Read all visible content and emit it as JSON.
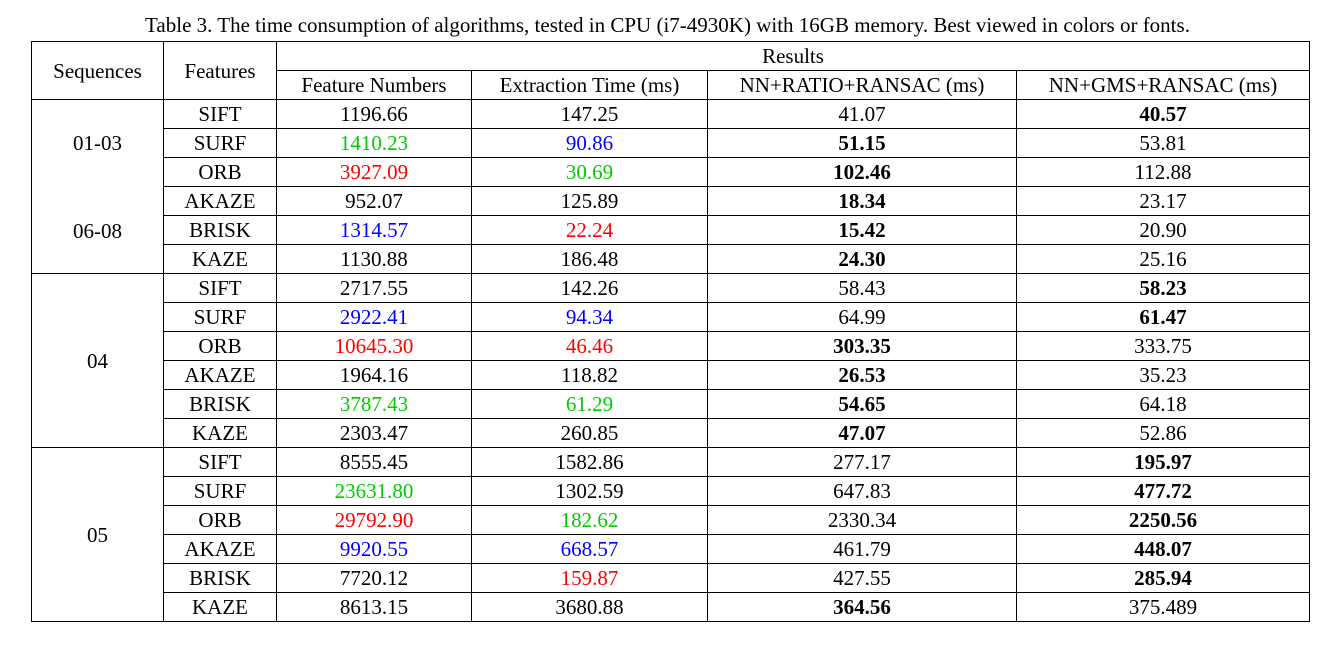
{
  "caption": "Table 3. The time consumption of algorithms, tested in CPU (i7-4930K) with 16GB memory. Best viewed in colors or fonts.",
  "header": {
    "sequences": "Sequences",
    "features": "Features",
    "results": "Results",
    "cols": [
      "Feature Numbers",
      "Extraction Time (ms)",
      "NN+RATIO+RANSAC (ms)",
      "NN+GMS+RANSAC (ms)"
    ]
  },
  "groups": [
    {
      "seq_lines": [
        "01-03",
        "06-08"
      ],
      "rows": [
        {
          "feature": "SIFT",
          "cells": [
            {
              "v": "1196.66",
              "c": ""
            },
            {
              "v": "147.25",
              "c": ""
            },
            {
              "v": "41.07",
              "c": ""
            },
            {
              "v": "40.57",
              "c": "bold"
            }
          ]
        },
        {
          "feature": "SURF",
          "cells": [
            {
              "v": "1410.23",
              "c": "green"
            },
            {
              "v": "90.86",
              "c": "blue"
            },
            {
              "v": "51.15",
              "c": "bold"
            },
            {
              "v": "53.81",
              "c": ""
            }
          ]
        },
        {
          "feature": "ORB",
          "cells": [
            {
              "v": "3927.09",
              "c": "red"
            },
            {
              "v": "30.69",
              "c": "green"
            },
            {
              "v": "102.46",
              "c": "bold"
            },
            {
              "v": "112.88",
              "c": ""
            }
          ]
        },
        {
          "feature": "AKAZE",
          "cells": [
            {
              "v": "952.07",
              "c": ""
            },
            {
              "v": "125.89",
              "c": ""
            },
            {
              "v": "18.34",
              "c": "bold"
            },
            {
              "v": "23.17",
              "c": ""
            }
          ]
        },
        {
          "feature": "BRISK",
          "cells": [
            {
              "v": "1314.57",
              "c": "blue"
            },
            {
              "v": "22.24",
              "c": "red"
            },
            {
              "v": "15.42",
              "c": "bold"
            },
            {
              "v": "20.90",
              "c": ""
            }
          ]
        },
        {
          "feature": "KAZE",
          "cells": [
            {
              "v": "1130.88",
              "c": ""
            },
            {
              "v": "186.48",
              "c": ""
            },
            {
              "v": "24.30",
              "c": "bold"
            },
            {
              "v": "25.16",
              "c": ""
            }
          ]
        }
      ]
    },
    {
      "seq_lines": [
        "04"
      ],
      "rows": [
        {
          "feature": "SIFT",
          "cells": [
            {
              "v": "2717.55",
              "c": ""
            },
            {
              "v": "142.26",
              "c": ""
            },
            {
              "v": "58.43",
              "c": ""
            },
            {
              "v": "58.23",
              "c": "bold"
            }
          ]
        },
        {
          "feature": "SURF",
          "cells": [
            {
              "v": "2922.41",
              "c": "blue"
            },
            {
              "v": "94.34",
              "c": "blue"
            },
            {
              "v": "64.99",
              "c": ""
            },
            {
              "v": "61.47",
              "c": "bold"
            }
          ]
        },
        {
          "feature": "ORB",
          "cells": [
            {
              "v": "10645.30",
              "c": "red"
            },
            {
              "v": "46.46",
              "c": "red"
            },
            {
              "v": "303.35",
              "c": "bold"
            },
            {
              "v": "333.75",
              "c": ""
            }
          ]
        },
        {
          "feature": "AKAZE",
          "cells": [
            {
              "v": "1964.16",
              "c": ""
            },
            {
              "v": "118.82",
              "c": ""
            },
            {
              "v": "26.53",
              "c": "bold"
            },
            {
              "v": "35.23",
              "c": ""
            }
          ]
        },
        {
          "feature": "BRISK",
          "cells": [
            {
              "v": "3787.43",
              "c": "green"
            },
            {
              "v": "61.29",
              "c": "green"
            },
            {
              "v": "54.65",
              "c": "bold"
            },
            {
              "v": "64.18",
              "c": ""
            }
          ]
        },
        {
          "feature": "KAZE",
          "cells": [
            {
              "v": "2303.47",
              "c": ""
            },
            {
              "v": "260.85",
              "c": ""
            },
            {
              "v": "47.07",
              "c": "bold"
            },
            {
              "v": "52.86",
              "c": ""
            }
          ]
        }
      ]
    },
    {
      "seq_lines": [
        "05"
      ],
      "rows": [
        {
          "feature": "SIFT",
          "cells": [
            {
              "v": "8555.45",
              "c": ""
            },
            {
              "v": "1582.86",
              "c": ""
            },
            {
              "v": "277.17",
              "c": ""
            },
            {
              "v": "195.97",
              "c": "bold"
            }
          ]
        },
        {
          "feature": "SURF",
          "cells": [
            {
              "v": "23631.80",
              "c": "green"
            },
            {
              "v": "1302.59",
              "c": ""
            },
            {
              "v": "647.83",
              "c": ""
            },
            {
              "v": "477.72",
              "c": "bold"
            }
          ]
        },
        {
          "feature": "ORB",
          "cells": [
            {
              "v": "29792.90",
              "c": "red"
            },
            {
              "v": "182.62",
              "c": "green"
            },
            {
              "v": "2330.34",
              "c": ""
            },
            {
              "v": "2250.56",
              "c": "bold"
            }
          ]
        },
        {
          "feature": "AKAZE",
          "cells": [
            {
              "v": "9920.55",
              "c": "blue"
            },
            {
              "v": "668.57",
              "c": "blue"
            },
            {
              "v": "461.79",
              "c": ""
            },
            {
              "v": "448.07",
              "c": "bold"
            }
          ]
        },
        {
          "feature": "BRISK",
          "cells": [
            {
              "v": "7720.12",
              "c": ""
            },
            {
              "v": "159.87",
              "c": "red"
            },
            {
              "v": "427.55",
              "c": ""
            },
            {
              "v": "285.94",
              "c": "bold"
            }
          ]
        },
        {
          "feature": "KAZE",
          "cells": [
            {
              "v": "8613.15",
              "c": ""
            },
            {
              "v": "3680.88",
              "c": ""
            },
            {
              "v": "364.56",
              "c": "bold"
            },
            {
              "v": "375.489",
              "c": ""
            }
          ]
        }
      ]
    }
  ],
  "colors": {
    "red": "#ff0000",
    "green": "#00cc00",
    "blue": "#0000ff"
  }
}
